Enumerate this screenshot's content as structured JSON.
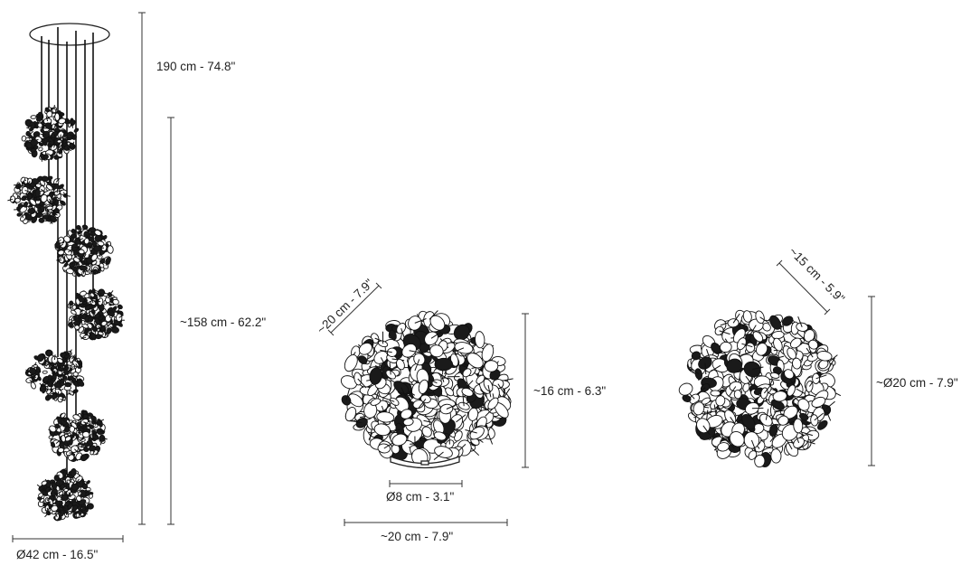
{
  "diagram": {
    "colors": {
      "ink": "#111111",
      "line": "#333333",
      "background": "#ffffff"
    },
    "views": [
      {
        "id": "suspension",
        "dimensions": {
          "total_height": "190 cm - 74.8\"",
          "drop_height": "~158 cm - 62.2\"",
          "canopy_diameter": "Ø42 cm - 16.5\""
        }
      },
      {
        "id": "table-lamp",
        "dimensions": {
          "element_size": "~20 cm - 7.9\"",
          "height": "~16 cm - 6.3\"",
          "base_diameter": "Ø8 cm - 3.1\"",
          "width": "~20 cm - 7.9\""
        }
      },
      {
        "id": "sphere-module",
        "dimensions": {
          "element_size": "~15 cm - 5.9\"",
          "diameter": "~Ø20 cm - 7.9\""
        }
      }
    ]
  }
}
